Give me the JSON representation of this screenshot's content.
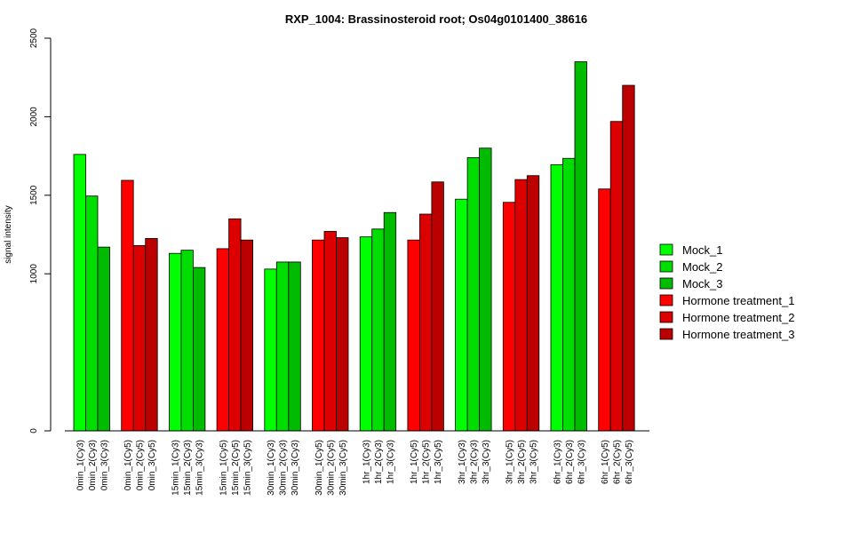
{
  "chart_data": {
    "type": "bar",
    "title": "RXP_1004: Brassinosteroid root; Os04g0101400_38616",
    "ylabel": "signal intensity",
    "xlabel": "",
    "ylim": [
      0,
      2500
    ],
    "y_ticks": [
      0,
      1000,
      1500,
      2000,
      2500
    ],
    "grid": false,
    "legend_position": "right",
    "categories": [
      "0min_1(Cy3)",
      "0min_2(Cy3)",
      "0min_3(Cy3)",
      "0min_1(Cy5)",
      "0min_2(Cy5)",
      "0min_3(Cy5)",
      "15min_1(Cy3)",
      "15min_2(Cy3)",
      "15min_3(Cy3)",
      "15min_1(Cy5)",
      "15min_2(Cy5)",
      "15min_3(Cy5)",
      "30min_1(Cy3)",
      "30min_2(Cy3)",
      "30min_3(Cy3)",
      "30min_1(Cy5)",
      "30min_2(Cy5)",
      "30min_3(Cy5)",
      "1hr_1(Cy3)",
      "1hr_2(Cy3)",
      "1hr_3(Cy3)",
      "1hr_1(Cy5)",
      "1hr_2(Cy5)",
      "1hr_3(Cy5)",
      "3hr_1(Cy3)",
      "3hr_2(Cy3)",
      "3hr_3(Cy3)",
      "3hr_1(Cy5)",
      "3hr_2(Cy5)",
      "3hr_3(Cy5)",
      "6hr_1(Cy3)",
      "6hr_2(Cy3)",
      "6hr_3(Cy3)",
      "6hr_1(Cy5)",
      "6hr_2(Cy5)",
      "6hr_3(Cy5)"
    ],
    "values": [
      1760,
      1495,
      1170,
      1595,
      1180,
      1225,
      1130,
      1150,
      1040,
      1160,
      1350,
      1215,
      1030,
      1075,
      1075,
      1215,
      1270,
      1230,
      1235,
      1285,
      1390,
      1215,
      1380,
      1585,
      1475,
      1740,
      1800,
      1455,
      1600,
      1625,
      1695,
      1735,
      2350,
      1540,
      1970,
      2200
    ],
    "bar_series": [
      "Mock_1",
      "Mock_2",
      "Mock_3",
      "Hormone treatment_1",
      "Hormone treatment_2",
      "Hormone treatment_3",
      "Mock_1",
      "Mock_2",
      "Mock_3",
      "Hormone treatment_1",
      "Hormone treatment_2",
      "Hormone treatment_3",
      "Mock_1",
      "Mock_2",
      "Mock_3",
      "Hormone treatment_1",
      "Hormone treatment_2",
      "Hormone treatment_3",
      "Mock_1",
      "Mock_2",
      "Mock_3",
      "Hormone treatment_1",
      "Hormone treatment_2",
      "Hormone treatment_3",
      "Mock_1",
      "Mock_2",
      "Mock_3",
      "Hormone treatment_1",
      "Hormone treatment_2",
      "Hormone treatment_3",
      "Mock_1",
      "Mock_2",
      "Mock_3",
      "Hormone treatment_1",
      "Hormone treatment_2",
      "Hormone treatment_3"
    ],
    "series": [
      {
        "name": "Mock_1",
        "color": "#00ff00"
      },
      {
        "name": "Mock_2",
        "color": "#00dd00"
      },
      {
        "name": "Mock_3",
        "color": "#00bb00"
      },
      {
        "name": "Hormone treatment_1",
        "color": "#ff0000"
      },
      {
        "name": "Hormone treatment_2",
        "color": "#dd0000"
      },
      {
        "name": "Hormone treatment_3",
        "color": "#bb0000"
      }
    ]
  }
}
